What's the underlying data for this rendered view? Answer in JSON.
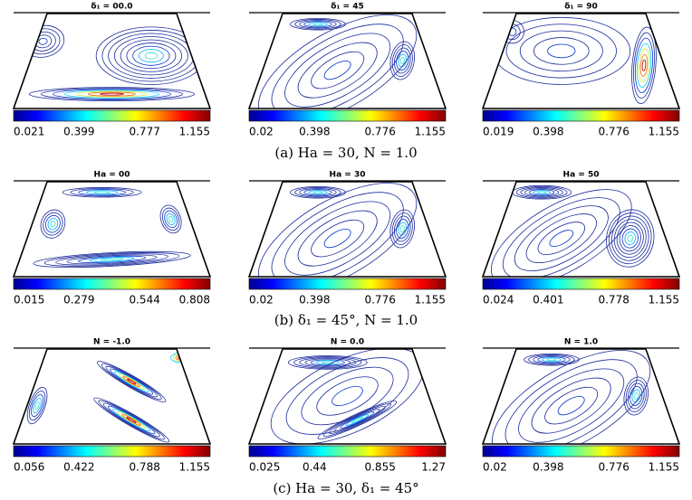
{
  "rows": [
    {
      "caption": "(a) Ha = 30, N = 1.0",
      "panels": [
        {
          "title": "δ₁ = 00.0",
          "ticks": [
            "0.021",
            "0.399",
            "0.777",
            "1.155"
          ]
        },
        {
          "title": "δ₁ = 45",
          "ticks": [
            "0.02",
            "0.398",
            "0.776",
            "1.155"
          ]
        },
        {
          "title": "δ₁ = 90",
          "ticks": [
            "0.019",
            "0.398",
            "0.776",
            "1.155"
          ]
        }
      ]
    },
    {
      "caption": "(b) δ₁ = 45°, N = 1.0",
      "panels": [
        {
          "title": "Ha = 00",
          "ticks": [
            "0.015",
            "0.279",
            "0.544",
            "0.808"
          ]
        },
        {
          "title": "Ha = 30",
          "ticks": [
            "0.02",
            "0.398",
            "0.776",
            "1.155"
          ]
        },
        {
          "title": "Ha = 50",
          "ticks": [
            "0.024",
            "0.401",
            "0.778",
            "1.155"
          ]
        }
      ]
    },
    {
      "caption": "(c) Ha = 30, δ₁ = 45°",
      "panels": [
        {
          "title": "N = -1.0",
          "ticks": [
            "0.056",
            "0.422",
            "0.788",
            "1.155"
          ]
        },
        {
          "title": "N = 0.0",
          "ticks": [
            "0.025",
            "0.44",
            "0.855",
            "1.27"
          ]
        },
        {
          "title": "N = 1.0",
          "ticks": [
            "0.02",
            "0.398",
            "0.776",
            "1.155"
          ]
        }
      ]
    }
  ]
}
